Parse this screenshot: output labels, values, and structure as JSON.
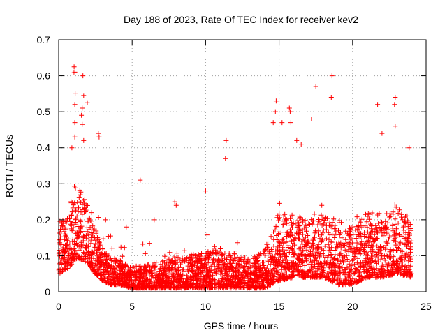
{
  "chart_data": {
    "type": "scatter",
    "title": "Day 188 of 2023, Rate Of TEC Index for receiver kev2",
    "xlabel": "GPS time / hours",
    "ylabel": "ROTI / TECUs",
    "xlim": [
      0,
      25
    ],
    "ylim": [
      0,
      0.7
    ],
    "xticks": [
      0,
      5,
      10,
      15,
      20,
      25
    ],
    "xtick_labels": [
      "0",
      "5",
      "10",
      "15",
      "20",
      "25"
    ],
    "yticks": [
      0,
      0.1,
      0.2,
      0.3,
      0.4,
      0.5,
      0.6,
      0.7
    ],
    "ytick_labels": [
      "0",
      "0.1",
      "0.2",
      "0.3",
      "0.4",
      "0.5",
      "0.6",
      "0.7"
    ],
    "grid": true,
    "marker": "plus",
    "color": "#ff0000",
    "profile": [
      [
        0,
        0.2,
        0.05
      ],
      [
        0.5,
        0.2,
        0.06
      ],
      [
        1,
        0.3,
        0.08
      ],
      [
        1.5,
        0.28,
        0.09
      ],
      [
        2,
        0.24,
        0.08
      ],
      [
        2.5,
        0.18,
        0.05
      ],
      [
        3,
        0.12,
        0.03
      ],
      [
        3.5,
        0.1,
        0.02
      ],
      [
        4,
        0.09,
        0.02
      ],
      [
        5,
        0.07,
        0.01
      ],
      [
        6,
        0.08,
        0.01
      ],
      [
        7,
        0.09,
        0.01
      ],
      [
        8,
        0.1,
        0.01
      ],
      [
        9,
        0.1,
        0.01
      ],
      [
        10,
        0.11,
        0.01
      ],
      [
        11,
        0.12,
        0.01
      ],
      [
        12,
        0.11,
        0.01
      ],
      [
        13,
        0.09,
        0.01
      ],
      [
        14,
        0.12,
        0.01
      ],
      [
        15,
        0.22,
        0.03
      ],
      [
        16,
        0.22,
        0.04
      ],
      [
        17,
        0.2,
        0.04
      ],
      [
        18,
        0.22,
        0.04
      ],
      [
        19,
        0.2,
        0.02
      ],
      [
        20,
        0.18,
        0.02
      ],
      [
        21,
        0.22,
        0.04
      ],
      [
        22,
        0.22,
        0.04
      ],
      [
        23,
        0.24,
        0.05
      ],
      [
        24,
        0.2,
        0.04
      ]
    ],
    "outliers": [
      [
        1.05,
        0.625
      ],
      [
        1.1,
        0.61
      ],
      [
        1.0,
        0.608
      ],
      [
        1.65,
        0.6
      ],
      [
        1.12,
        0.55
      ],
      [
        1.7,
        0.545
      ],
      [
        1.1,
        0.52
      ],
      [
        1.95,
        0.525
      ],
      [
        1.6,
        0.51
      ],
      [
        1.55,
        0.49
      ],
      [
        1.1,
        0.47
      ],
      [
        1.6,
        0.465
      ],
      [
        1.1,
        0.43
      ],
      [
        1.7,
        0.42
      ],
      [
        0.9,
        0.4
      ],
      [
        2.7,
        0.44
      ],
      [
        2.75,
        0.43
      ],
      [
        11.4,
        0.42
      ],
      [
        11.35,
        0.37
      ],
      [
        14.8,
        0.53
      ],
      [
        14.75,
        0.5
      ],
      [
        15.7,
        0.51
      ],
      [
        15.75,
        0.5
      ],
      [
        15.2,
        0.47
      ],
      [
        15.8,
        0.47
      ],
      [
        17.2,
        0.48
      ],
      [
        17.5,
        0.57
      ],
      [
        18.6,
        0.6
      ],
      [
        18.55,
        0.54
      ],
      [
        14.6,
        0.47
      ],
      [
        21.7,
        0.52
      ],
      [
        22.9,
        0.54
      ],
      [
        22.85,
        0.52
      ],
      [
        22.9,
        0.46
      ],
      [
        22.0,
        0.44
      ],
      [
        23.85,
        0.4
      ],
      [
        16.2,
        0.42
      ],
      [
        16.5,
        0.41
      ],
      [
        5.55,
        0.31
      ],
      [
        7.9,
        0.25
      ],
      [
        8.0,
        0.24
      ],
      [
        10.0,
        0.28
      ],
      [
        3.2,
        0.2
      ],
      [
        4.6,
        0.18
      ],
      [
        6.5,
        0.2
      ]
    ],
    "n_points": 3400
  }
}
